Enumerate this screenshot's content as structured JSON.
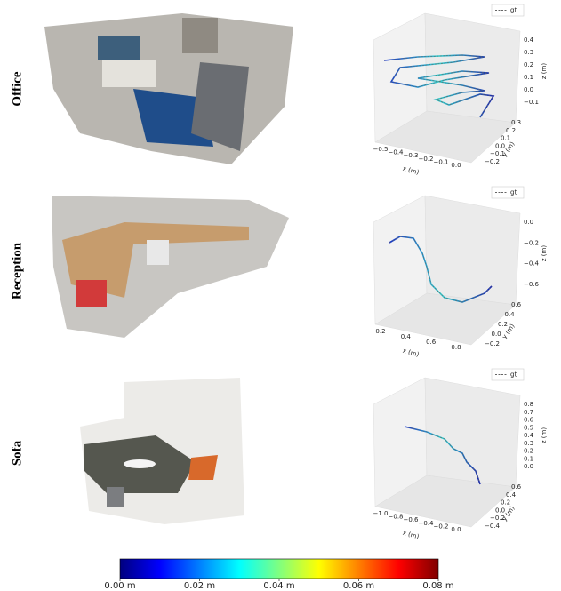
{
  "rows": [
    {
      "label": "Office",
      "plot": {
        "legend": "gt",
        "xlabel": "x (m)",
        "ylabel": "y (m)",
        "zlabel": "z (m)",
        "xticks": [
          "−0.5",
          "−0.4",
          "−0.3",
          "−0.2",
          "−0.1",
          "0.0"
        ],
        "yticks": [
          "−0.2",
          "−0.1",
          "0.0",
          "0.1",
          "0.2",
          "0.3"
        ],
        "zticks": [
          "−0.1",
          "0.0",
          "0.1",
          "0.2",
          "0.3",
          "0.4"
        ]
      }
    },
    {
      "label": "Reception",
      "plot": {
        "legend": "gt",
        "xlabel": "x (m)",
        "ylabel": "y (m)",
        "zlabel": "z (m)",
        "xticks": [
          "0.2",
          "0.4",
          "0.6",
          "0.8"
        ],
        "yticks": [
          "−0.2",
          "0.0",
          "0.2",
          "0.4",
          "0.6"
        ],
        "zticks": [
          "−0.6",
          "−0.4",
          "−0.2",
          "0.0"
        ]
      }
    },
    {
      "label": "Sofa",
      "plot": {
        "legend": "gt",
        "xlabel": "x (m)",
        "ylabel": "y (m)",
        "zlabel": "z (m)",
        "xticks": [
          "−1.0",
          "−0.8",
          "−0.6",
          "−0.4",
          "−0.2",
          "0.0"
        ],
        "yticks": [
          "−0.4",
          "−0.2",
          "0.0",
          "0.2",
          "0.4",
          "0.6"
        ],
        "zticks": [
          "0.0",
          "0.1",
          "0.2",
          "0.3",
          "0.4",
          "0.5",
          "0.6",
          "0.7",
          "0.8"
        ]
      }
    }
  ],
  "colorbar": {
    "ticks": [
      "0.00 m",
      "0.02 m",
      "0.04 m",
      "0.06 m",
      "0.08 m"
    ]
  }
}
